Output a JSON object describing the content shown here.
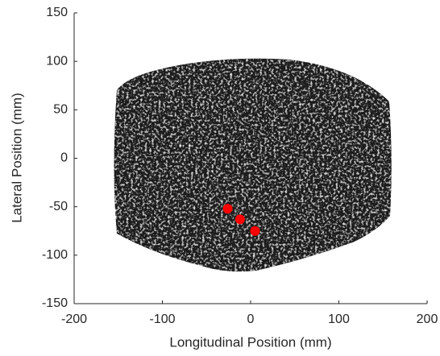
{
  "chart_data": {
    "type": "scatter",
    "xlabel": "Longitudinal Position (mm)",
    "ylabel": "Lateral Position (mm)",
    "x": [
      -26,
      -12,
      5
    ],
    "values": [
      -52,
      -63,
      -75
    ],
    "color": "#ff0000",
    "xlim": [
      -200,
      200
    ],
    "xticks": [
      -200,
      -100,
      0,
      100,
      200
    ],
    "ylim": [
      -150,
      150
    ],
    "yticks": [
      -150,
      -100,
      -50,
      0,
      50,
      100,
      150
    ]
  }
}
